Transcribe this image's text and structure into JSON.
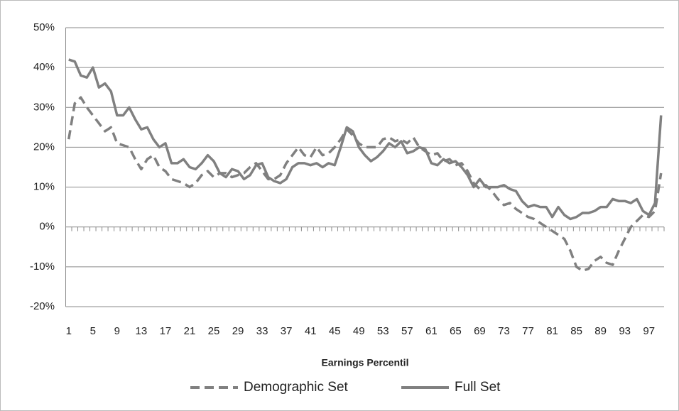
{
  "chart_data": {
    "type": "line",
    "x_label": "Earnings Percentil",
    "categories": [
      "1",
      null,
      null,
      null,
      "5",
      null,
      null,
      null,
      "9",
      null,
      null,
      null,
      "13",
      null,
      null,
      null,
      "17",
      null,
      null,
      null,
      "21",
      null,
      null,
      null,
      "25",
      null,
      null,
      null,
      "29",
      null,
      null,
      null,
      "33",
      null,
      null,
      null,
      "37",
      null,
      null,
      null,
      "41",
      null,
      null,
      null,
      "45",
      null,
      null,
      null,
      "49",
      null,
      null,
      null,
      "53",
      null,
      null,
      null,
      "57",
      null,
      null,
      null,
      "61",
      null,
      null,
      null,
      "65",
      null,
      null,
      null,
      "69",
      null,
      null,
      null,
      "73",
      null,
      null,
      null,
      "77",
      null,
      null,
      null,
      "81",
      null,
      null,
      null,
      "85",
      null,
      null,
      null,
      "89",
      null,
      null,
      null,
      "93",
      null,
      null,
      null,
      "97",
      null,
      null
    ],
    "series": [
      {
        "name": "Demographic Set",
        "color": "#808080",
        "dashed": true,
        "values": [
          22,
          31,
          32.5,
          30,
          28,
          26,
          24,
          25,
          21,
          20.5,
          20,
          17,
          14.5,
          17,
          18,
          15,
          14,
          12,
          11.5,
          11,
          10,
          11,
          13,
          14,
          12.5,
          13.5,
          13.5,
          12.5,
          13,
          13.5,
          15,
          16,
          14,
          12,
          12,
          13,
          16,
          18,
          20,
          18,
          17.5,
          20,
          18,
          18.5,
          20,
          22,
          24.5,
          23,
          21,
          20,
          20,
          20,
          22,
          22.5,
          21.5,
          22,
          21,
          22.5,
          20,
          19,
          18,
          18.5,
          16.5,
          17,
          15.5,
          16,
          14,
          11,
          9.5,
          10.5,
          9,
          7,
          5.5,
          6,
          4.5,
          3.5,
          2.5,
          2,
          1,
          0,
          -1,
          -2,
          -3,
          -6,
          -10,
          -11,
          -10.5,
          -8.5,
          -7.5,
          -9,
          -9.5,
          -6,
          -3,
          0,
          1.5,
          3,
          2.5,
          4,
          13.5
        ]
      },
      {
        "name": "Full Set",
        "color": "#808080",
        "dashed": false,
        "values": [
          42,
          41.5,
          38,
          37.5,
          40,
          35,
          36,
          34,
          28,
          28,
          30,
          27,
          24.5,
          25,
          22,
          20,
          21,
          16,
          16,
          17,
          15,
          14.5,
          16,
          18,
          16.5,
          13.5,
          12.5,
          14.5,
          14,
          12,
          13,
          15.5,
          16,
          12.5,
          11.5,
          11,
          12,
          15,
          16,
          16,
          15.5,
          16,
          15,
          16,
          15.5,
          20,
          25,
          24,
          20,
          18,
          16.5,
          17.5,
          19,
          21,
          20,
          21.5,
          18.5,
          19,
          20,
          19.5,
          16,
          15.5,
          17,
          16,
          16.5,
          15,
          13,
          10,
          12,
          10,
          10,
          10,
          10.5,
          9.5,
          9,
          6.5,
          5,
          5.5,
          5,
          5,
          2.5,
          5,
          3,
          2,
          2.5,
          3.5,
          3.5,
          4,
          5,
          5,
          7,
          6.5,
          6.5,
          6,
          7,
          4,
          3,
          6,
          28
        ]
      }
    ],
    "ylim": [
      -20,
      50
    ],
    "yticks": [
      {
        "value": -20,
        "label": "-20%"
      },
      {
        "value": -10,
        "label": "-10%"
      },
      {
        "value": 0,
        "label": "0%"
      },
      {
        "value": 10,
        "label": "10%"
      },
      {
        "value": 20,
        "label": "20%"
      },
      {
        "value": 30,
        "label": "30%"
      },
      {
        "value": 40,
        "label": "40%"
      },
      {
        "value": 50,
        "label": "50%"
      }
    ],
    "grid": true,
    "legend": "bottom"
  }
}
